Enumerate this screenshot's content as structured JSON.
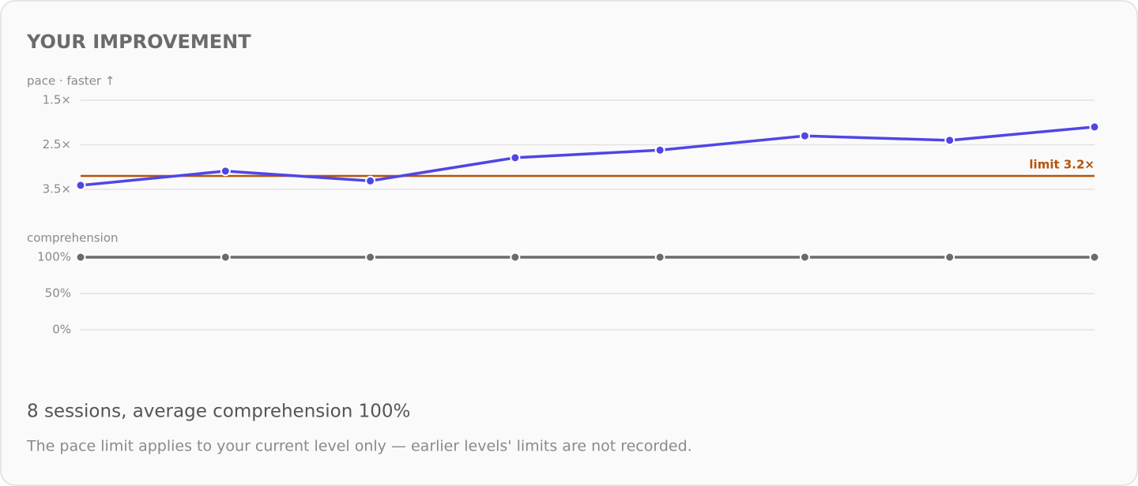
{
  "card": {
    "title": "YOUR IMPROVEMENT",
    "summary": "8 sessions, average comprehension 100%",
    "note": "The pace limit applies to your current level only — earlier levels' limits are not recorded."
  },
  "chart_data": [
    {
      "type": "line",
      "y_label": "pace · faster ↑",
      "ylim": [
        3.5,
        1.5
      ],
      "yticks": [
        {
          "value": 1.5,
          "label": "1.5×"
        },
        {
          "value": 2.5,
          "label": "2.5×"
        },
        {
          "value": 3.5,
          "label": "3.5×"
        }
      ],
      "grid": true,
      "series": [
        {
          "color": "#4f46e5",
          "values": [
            3.41,
            3.09,
            3.31,
            2.79,
            2.62,
            2.3,
            2.4,
            2.1
          ]
        }
      ],
      "annotation": {
        "value": 3.2,
        "label": "limit 3.2×",
        "color": "#b45309"
      }
    },
    {
      "type": "line",
      "y_label": "comprehension",
      "ylim": [
        0,
        100
      ],
      "yticks": [
        {
          "value": 0,
          "label": "0%"
        },
        {
          "value": 50,
          "label": "50%"
        },
        {
          "value": 100,
          "label": "100%"
        }
      ],
      "grid": true,
      "series": [
        {
          "color": "#6b6b6b",
          "values": [
            100,
            100,
            100,
            100,
            100,
            100,
            100,
            100
          ]
        }
      ]
    }
  ]
}
